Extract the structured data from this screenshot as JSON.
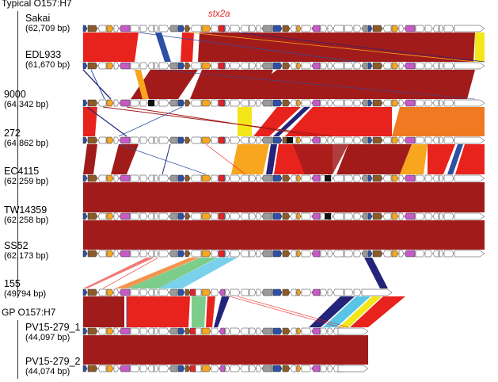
{
  "groups": {
    "typical": "Typical O157:H7",
    "gp": "GP O157:H7"
  },
  "annotation": {
    "gene": "stx2a"
  },
  "genomes": [
    {
      "name": "Sakai",
      "size": "(62,709 bp)"
    },
    {
      "name": "EDL933",
      "size": "(61,670 bp)"
    },
    {
      "name": "9000",
      "size": "(64,342 bp)"
    },
    {
      "name": "272",
      "size": "(64,862 bp)"
    },
    {
      "name": "EC4115",
      "size": "(62,259 bp)"
    },
    {
      "name": "TW14359",
      "size": "(62,258 bp)"
    },
    {
      "name": "SS52",
      "size": "(62,173 bp)"
    },
    {
      "name": "155",
      "size": "(49794 bp)"
    },
    {
      "name": "PV15-279_1",
      "size": "(44,097 bp)"
    },
    {
      "name": "PV15-279_2",
      "size": "(44,074 bp)"
    }
  ],
  "colors": {
    "identity_high": "#a11b1b",
    "identity_mid": "#e8221d",
    "identity_low": "#f07a22",
    "identity_lower": "#f8a61d",
    "identity_yellow": "#f3e619",
    "identity_green": "#7ccd8b",
    "identity_cyan": "#58c5e6",
    "identity_navy": "#24247a",
    "gene_brown": "#8b5a2b",
    "gene_blue": "#2e4fa3",
    "gene_magenta": "#c65bc6",
    "gene_orange": "#f5a623",
    "gene_red": "#e3232b",
    "gene_gray": "#9a9a9a",
    "gene_black": "#111111",
    "gene_white": "#ffffff"
  }
}
